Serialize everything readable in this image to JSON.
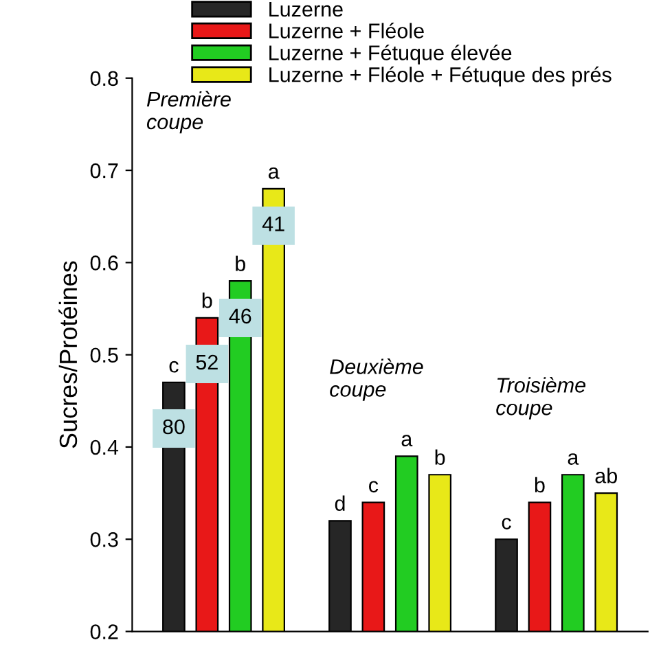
{
  "chart_data": {
    "type": "bar",
    "ylabel": "Sucres/Protéines",
    "categories": [
      null,
      null,
      null
    ],
    "series": [
      {
        "name": "Luzerne",
        "color": "#262626",
        "values": [
          0.47,
          0.32,
          0.3
        ],
        "value_labels": [
          "c",
          "d",
          "c"
        ]
      },
      {
        "name": "Luzerne + Fléole",
        "color": "#e81818",
        "values": [
          0.54,
          0.34,
          0.34
        ],
        "value_labels": [
          "b",
          "c",
          "b"
        ]
      },
      {
        "name": "Luzerne + Fétuque élevée",
        "color": "#22cc22",
        "values": [
          0.58,
          0.39,
          0.37
        ],
        "value_labels": [
          "b",
          "a",
          "a"
        ]
      },
      {
        "name": "Luzerne + Fléole + Fétuque des prés",
        "color": "#e8e818",
        "values": [
          0.68,
          0.37,
          0.35
        ],
        "value_labels": [
          "a",
          "b",
          "ab"
        ]
      }
    ],
    "annotations": [
      {
        "text": "80",
        "y": 0.42
      },
      {
        "text": "52",
        "y": 0.49
      },
      {
        "text": "46",
        "y": 0.54
      },
      {
        "text": "41",
        "y": 0.64
      },
      "Première\ncoupe",
      "Deuxième\ncoupe",
      "Troisième\ncoupe"
    ],
    "ylim": [
      0.2,
      0.8
    ],
    "yticks": [
      0.2,
      0.3,
      0.4,
      0.5,
      0.6,
      0.7,
      0.8
    ],
    "grid": false,
    "legend": "top left"
  }
}
